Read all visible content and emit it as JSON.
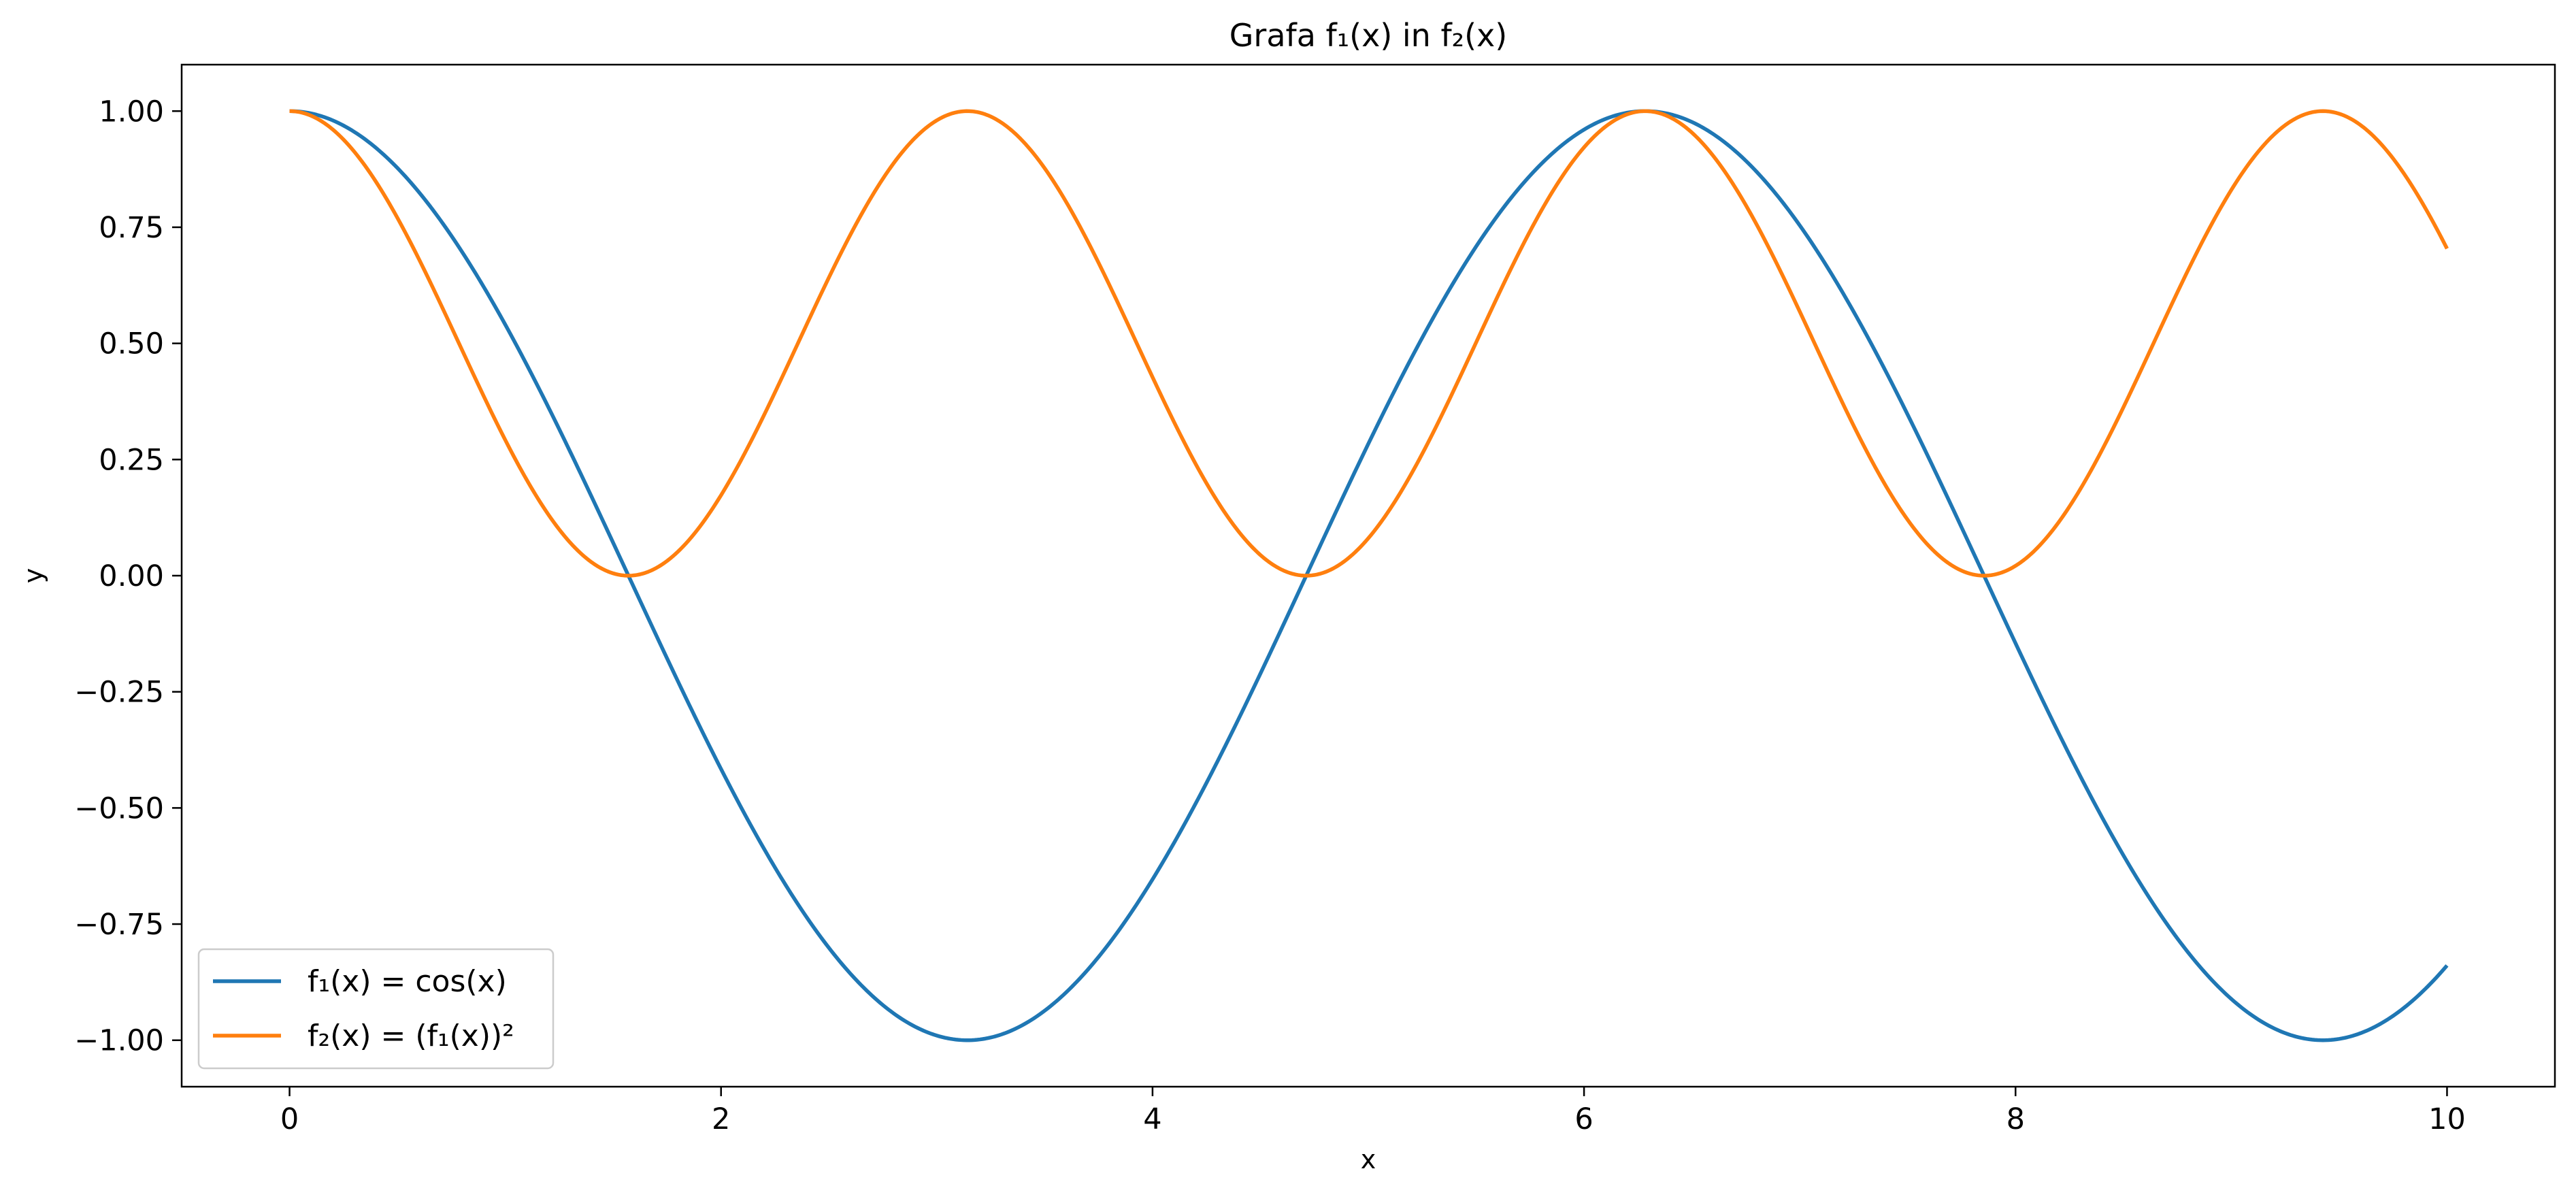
{
  "chart_data": {
    "type": "line",
    "title": "Grafa f₁(x) in f₂(x)",
    "xlabel": "x",
    "ylabel": "y",
    "xlim": [
      -0.5,
      10.5
    ],
    "ylim": [
      -1.1,
      1.1
    ],
    "grid": false,
    "legend_position": "lower-left",
    "x_ticks": [
      0,
      2,
      4,
      6,
      8,
      10
    ],
    "x_tick_labels": [
      "0",
      "2",
      "4",
      "6",
      "8",
      "10"
    ],
    "y_ticks": [
      1.0,
      0.75,
      0.5,
      0.25,
      0.0,
      -0.25,
      -0.5,
      -0.75,
      -1.0
    ],
    "y_tick_labels": [
      "1.00",
      "0.75",
      "0.50",
      "0.25",
      "0.00",
      "−0.25",
      "−0.50",
      "−0.75",
      "−1.00"
    ],
    "x_range": [
      0,
      10
    ],
    "series": [
      {
        "name": "f₁(x) = cos(x)",
        "color": "#1f77b4",
        "function": "cos(x)",
        "x": [
          0,
          0.5,
          1,
          1.5,
          1.571,
          2,
          2.5,
          3,
          3.142,
          3.5,
          4,
          4.5,
          4.712,
          5,
          5.5,
          6,
          6.283,
          6.5,
          7,
          7.5,
          7.854,
          8,
          8.5,
          9,
          9.425,
          9.5,
          10
        ],
        "y": [
          1.0,
          0.878,
          0.54,
          0.071,
          0.0,
          -0.416,
          -0.801,
          -0.99,
          -1.0,
          -0.936,
          -0.654,
          -0.211,
          0.0,
          0.284,
          0.709,
          0.96,
          1.0,
          0.977,
          0.754,
          0.347,
          0.0,
          -0.146,
          -0.602,
          -0.911,
          -1.0,
          -0.997,
          -0.839
        ]
      },
      {
        "name": "f₂(x) = (f₁(x))²",
        "color": "#ff7f0e",
        "function": "cos(x)^2",
        "x": [
          0,
          0.5,
          1,
          1.5,
          1.571,
          2,
          2.5,
          3,
          3.142,
          3.5,
          4,
          4.5,
          4.712,
          5,
          5.5,
          6,
          6.283,
          6.5,
          7,
          7.5,
          7.854,
          8,
          8.5,
          9,
          9.425,
          9.5,
          10
        ],
        "y": [
          1.0,
          0.77,
          0.292,
          0.005,
          0.0,
          0.173,
          0.642,
          0.98,
          1.0,
          0.877,
          0.427,
          0.045,
          0.0,
          0.08,
          0.503,
          0.922,
          1.0,
          0.955,
          0.568,
          0.12,
          0.0,
          0.021,
          0.362,
          0.83,
          1.0,
          0.994,
          0.704
        ]
      }
    ]
  }
}
